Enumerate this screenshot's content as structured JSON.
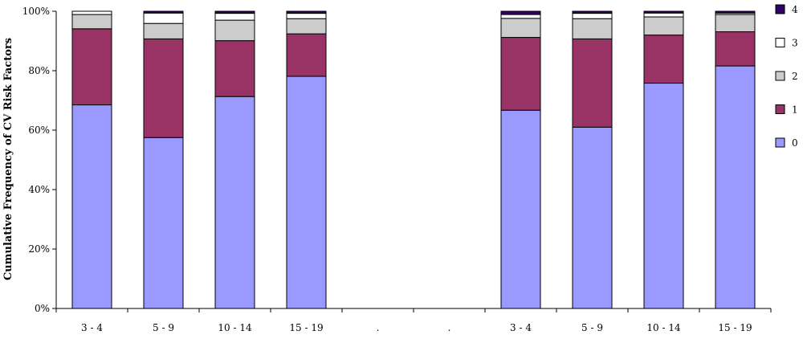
{
  "chart_data": {
    "type": "bar",
    "stacked": true,
    "title": "",
    "xlabel": "",
    "ylabel": "Cumulative Frequency of CV Risk Factors",
    "ylim": [
      0,
      100
    ],
    "y_ticks": [
      "0%",
      "20%",
      "40%",
      "60%",
      "80%",
      "100%"
    ],
    "categories": [
      "3 - 4",
      "5 - 9",
      "10 - 14",
      "15 - 19",
      ".",
      ".",
      "3 - 4",
      "5 - 9",
      "10 - 14",
      "15 - 19"
    ],
    "series": [
      {
        "name": "0",
        "color": "#9999ff",
        "values": [
          68.5,
          57.5,
          71.3,
          78.1,
          null,
          null,
          66.7,
          61.0,
          75.8,
          81.6
        ]
      },
      {
        "name": "1",
        "color": "#993366",
        "values": [
          25.6,
          33.2,
          18.8,
          14.3,
          null,
          null,
          24.5,
          29.7,
          16.2,
          11.5
        ]
      },
      {
        "name": "2",
        "color": "#cccccc",
        "values": [
          4.8,
          5.2,
          6.9,
          5.1,
          null,
          null,
          6.4,
          6.8,
          6.1,
          5.8
        ]
      },
      {
        "name": "3",
        "color": "#ffffff",
        "values": [
          1.1,
          3.5,
          2.3,
          1.8,
          null,
          null,
          1.3,
          1.8,
          1.3,
          0.5
        ]
      },
      {
        "name": "4",
        "color": "#330066",
        "values": [
          0,
          0.6,
          0.7,
          0.7,
          null,
          null,
          1.1,
          0.7,
          0.6,
          0.6
        ]
      }
    ],
    "legend": {
      "placement": "right",
      "order": [
        "4",
        "3",
        "2",
        "1",
        "0"
      ]
    },
    "grid": false
  }
}
